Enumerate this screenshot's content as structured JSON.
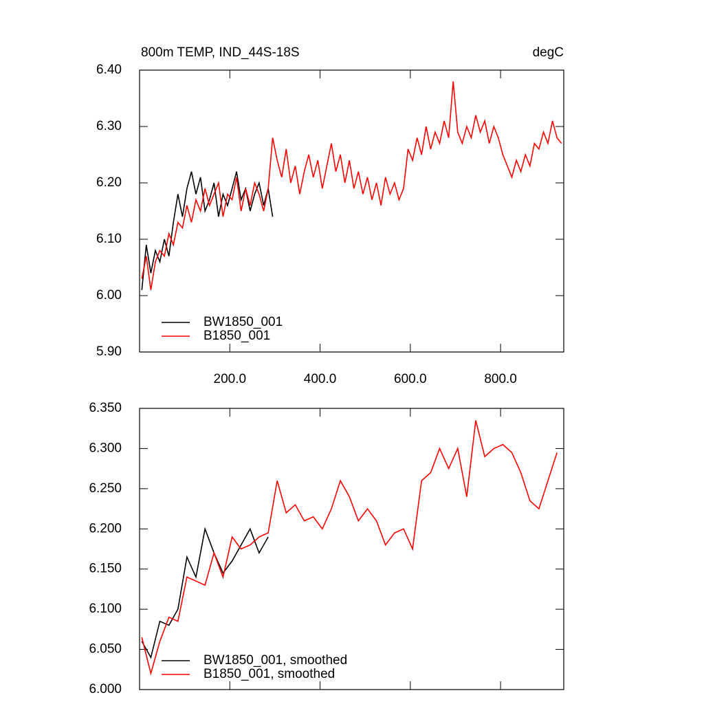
{
  "chart_data": [
    {
      "type": "line",
      "title": "800m TEMP, IND_44S-18S",
      "units": "degC",
      "xlim": [
        0,
        940
      ],
      "ylim": [
        5.9,
        6.4
      ],
      "xticks": [
        {
          "value": 200,
          "label": "200.0"
        },
        {
          "value": 400,
          "label": "400.0"
        },
        {
          "value": 600,
          "label": "600.0"
        },
        {
          "value": 800,
          "label": "800.0"
        }
      ],
      "yticks": [
        {
          "value": 5.9,
          "label": "5.90"
        },
        {
          "value": 6.0,
          "label": "6.00"
        },
        {
          "value": 6.1,
          "label": "6.10"
        },
        {
          "value": 6.2,
          "label": "6.20"
        },
        {
          "value": 6.3,
          "label": "6.30"
        },
        {
          "value": 6.4,
          "label": "6.40"
        }
      ],
      "series": [
        {
          "name": "BW1850_001",
          "color": "#000000",
          "x": [
            5,
            15,
            25,
            35,
            45,
            55,
            65,
            75,
            85,
            95,
            105,
            115,
            125,
            135,
            145,
            155,
            165,
            175,
            185,
            195,
            205,
            215,
            225,
            235,
            245,
            255,
            265,
            275,
            285,
            295
          ],
          "values": [
            6.01,
            6.09,
            6.04,
            6.08,
            6.06,
            6.1,
            6.07,
            6.13,
            6.18,
            6.14,
            6.19,
            6.22,
            6.18,
            6.21,
            6.15,
            6.17,
            6.2,
            6.14,
            6.18,
            6.16,
            6.19,
            6.22,
            6.17,
            6.19,
            6.15,
            6.18,
            6.2,
            6.16,
            6.19,
            6.14
          ]
        },
        {
          "name": "B1850_001",
          "color": "#ff0000",
          "x": [
            5,
            15,
            25,
            35,
            45,
            55,
            65,
            75,
            85,
            95,
            105,
            115,
            125,
            135,
            145,
            155,
            165,
            175,
            185,
            195,
            205,
            215,
            225,
            235,
            245,
            255,
            265,
            275,
            285,
            295,
            305,
            315,
            325,
            335,
            345,
            355,
            365,
            375,
            385,
            395,
            405,
            415,
            425,
            435,
            445,
            455,
            465,
            475,
            485,
            495,
            505,
            515,
            525,
            535,
            545,
            555,
            565,
            575,
            585,
            595,
            605,
            615,
            625,
            635,
            645,
            655,
            665,
            675,
            685,
            695,
            705,
            715,
            725,
            735,
            745,
            755,
            765,
            775,
            785,
            795,
            805,
            815,
            825,
            835,
            845,
            855,
            865,
            875,
            885,
            895,
            905,
            915,
            925,
            935
          ],
          "values": [
            6.03,
            6.07,
            6.01,
            6.06,
            6.08,
            6.07,
            6.11,
            6.09,
            6.13,
            6.12,
            6.16,
            6.13,
            6.17,
            6.15,
            6.19,
            6.16,
            6.18,
            6.2,
            6.14,
            6.18,
            6.17,
            6.21,
            6.15,
            6.19,
            6.16,
            6.2,
            6.18,
            6.15,
            6.19,
            6.28,
            6.24,
            6.21,
            6.26,
            6.2,
            6.23,
            6.18,
            6.22,
            6.25,
            6.21,
            6.24,
            6.19,
            6.23,
            6.27,
            6.22,
            6.25,
            6.2,
            6.24,
            6.19,
            6.22,
            6.18,
            6.21,
            6.17,
            6.2,
            6.16,
            6.21,
            6.18,
            6.2,
            6.17,
            6.19,
            6.26,
            6.24,
            6.28,
            6.25,
            6.3,
            6.26,
            6.29,
            6.27,
            6.31,
            6.28,
            6.38,
            6.29,
            6.27,
            6.3,
            6.28,
            6.32,
            6.29,
            6.31,
            6.27,
            6.3,
            6.28,
            6.25,
            6.23,
            6.21,
            6.24,
            6.22,
            6.25,
            6.23,
            6.27,
            6.26,
            6.29,
            6.27,
            6.31,
            6.28,
            6.27
          ]
        }
      ]
    },
    {
      "type": "line",
      "xlim": [
        0,
        940
      ],
      "ylim": [
        6.0,
        6.35
      ],
      "xticks": [
        200,
        400,
        600,
        800
      ],
      "yticks": [
        {
          "value": 6.0,
          "label": "6.000"
        },
        {
          "value": 6.05,
          "label": "6.050"
        },
        {
          "value": 6.1,
          "label": "6.100"
        },
        {
          "value": 6.15,
          "label": "6.150"
        },
        {
          "value": 6.2,
          "label": "6.200"
        },
        {
          "value": 6.25,
          "label": "6.250"
        },
        {
          "value": 6.3,
          "label": "6.300"
        },
        {
          "value": 6.35,
          "label": "6.350"
        }
      ],
      "series": [
        {
          "name": "BW1850_001, smoothed",
          "color": "#000000",
          "x": [
            5,
            25,
            45,
            65,
            85,
            105,
            125,
            145,
            165,
            185,
            205,
            225,
            245,
            265,
            285
          ],
          "values": [
            6.06,
            6.04,
            6.085,
            6.08,
            6.1,
            6.165,
            6.14,
            6.2,
            6.17,
            6.145,
            6.16,
            6.18,
            6.2,
            6.17,
            6.19
          ]
        },
        {
          "name": "B1850_001, smoothed",
          "color": "#ff0000",
          "x": [
            5,
            25,
            45,
            65,
            85,
            105,
            125,
            145,
            165,
            185,
            205,
            225,
            245,
            265,
            285,
            305,
            325,
            345,
            365,
            385,
            405,
            425,
            445,
            465,
            485,
            505,
            525,
            545,
            565,
            585,
            605,
            625,
            645,
            665,
            685,
            705,
            725,
            745,
            765,
            785,
            805,
            825,
            845,
            865,
            885,
            905,
            925
          ],
          "values": [
            6.065,
            6.02,
            6.06,
            6.09,
            6.085,
            6.14,
            6.135,
            6.13,
            6.17,
            6.14,
            6.19,
            6.175,
            6.18,
            6.19,
            6.195,
            6.26,
            6.22,
            6.23,
            6.21,
            6.215,
            6.2,
            6.225,
            6.26,
            6.24,
            6.21,
            6.225,
            6.21,
            6.18,
            6.195,
            6.2,
            6.175,
            6.26,
            6.27,
            6.3,
            6.275,
            6.3,
            6.24,
            6.335,
            6.29,
            6.3,
            6.305,
            6.295,
            6.27,
            6.235,
            6.225,
            6.26,
            6.295
          ]
        }
      ]
    }
  ]
}
